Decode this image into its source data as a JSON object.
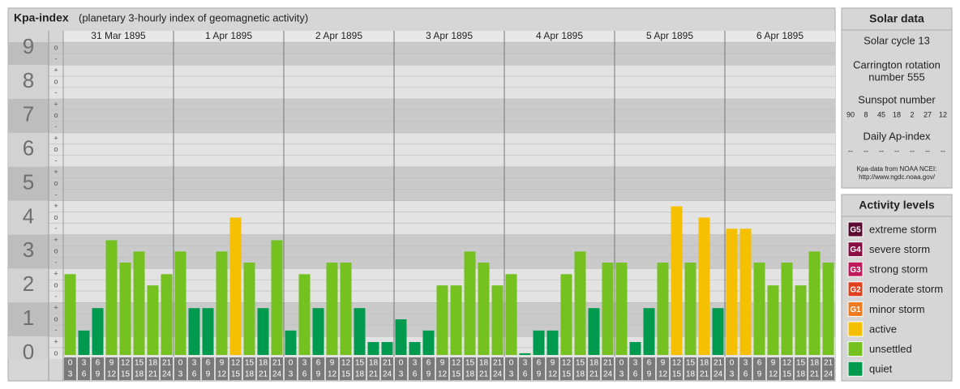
{
  "chart_data": {
    "type": "bar",
    "title": "Kpa-index",
    "subtitle": "(planetary 3-hourly index of geomagnetic activity)",
    "days": [
      "31 Mar 1895",
      "1 Apr 1895",
      "2 Apr 1895",
      "3 Apr 1895",
      "4 Apr 1895",
      "5 Apr 1895",
      "6 Apr 1895"
    ],
    "time_slots": [
      {
        "start": "0",
        "end": "3"
      },
      {
        "start": "3",
        "end": "6"
      },
      {
        "start": "6",
        "end": "9"
      },
      {
        "start": "9",
        "end": "12"
      },
      {
        "start": "12",
        "end": "15"
      },
      {
        "start": "15",
        "end": "18"
      },
      {
        "start": "18",
        "end": "21"
      },
      {
        "start": "21",
        "end": "24"
      }
    ],
    "values": [
      [
        2.33,
        0.67,
        1.33,
        3.33,
        2.67,
        3,
        2,
        2.33
      ],
      [
        3,
        1.33,
        1.33,
        3,
        4,
        2.67,
        1.33,
        3.33
      ],
      [
        0.67,
        2.33,
        1.33,
        2.67,
        2.67,
        1.33,
        0.33,
        0.33
      ],
      [
        1,
        0.33,
        0.67,
        2,
        2,
        3,
        2.67,
        2
      ],
      [
        2.33,
        0,
        0.67,
        0.67,
        2.33,
        3,
        1.33,
        2.67
      ],
      [
        2.67,
        0.33,
        1.33,
        2.67,
        4.33,
        2.67,
        4,
        1.33
      ],
      [
        3.67,
        3.67,
        2.67,
        2,
        2.67,
        2,
        3,
        2.67
      ]
    ],
    "colors": [
      [
        "#74c11f",
        "#009a4e",
        "#009a4e",
        "#74c11f",
        "#74c11f",
        "#74c11f",
        "#74c11f",
        "#74c11f"
      ],
      [
        "#74c11f",
        "#009a4e",
        "#009a4e",
        "#74c11f",
        "#f5c000",
        "#74c11f",
        "#009a4e",
        "#74c11f"
      ],
      [
        "#009a4e",
        "#74c11f",
        "#009a4e",
        "#74c11f",
        "#74c11f",
        "#009a4e",
        "#009a4e",
        "#009a4e"
      ],
      [
        "#009a4e",
        "#009a4e",
        "#009a4e",
        "#74c11f",
        "#74c11f",
        "#74c11f",
        "#74c11f",
        "#74c11f"
      ],
      [
        "#74c11f",
        "#009a4e",
        "#009a4e",
        "#009a4e",
        "#74c11f",
        "#74c11f",
        "#009a4e",
        "#74c11f"
      ],
      [
        "#74c11f",
        "#009a4e",
        "#009a4e",
        "#74c11f",
        "#f5c000",
        "#74c11f",
        "#f5c000",
        "#009a4e"
      ],
      [
        "#f5c000",
        "#f5c000",
        "#74c11f",
        "#74c11f",
        "#74c11f",
        "#74c11f",
        "#74c11f",
        "#74c11f"
      ]
    ],
    "ylim": [
      -0.17,
      9.17
    ],
    "ymajor": [
      0,
      1,
      2,
      3,
      4,
      5,
      6,
      7,
      8,
      9
    ],
    "yticks": [
      {
        "value": 0,
        "label": "o"
      },
      {
        "value": 0.33,
        "label": "+"
      },
      {
        "value": 0.67,
        "label": "-"
      },
      {
        "value": 1,
        "label": "o"
      },
      {
        "value": 1.33,
        "label": "+"
      },
      {
        "value": 1.67,
        "label": "-"
      },
      {
        "value": 2,
        "label": "o"
      },
      {
        "value": 2.33,
        "label": "+"
      },
      {
        "value": 2.67,
        "label": "-"
      },
      {
        "value": 3,
        "label": "o"
      },
      {
        "value": 3.33,
        "label": "+"
      },
      {
        "value": 3.67,
        "label": "-"
      },
      {
        "value": 4,
        "label": "o"
      },
      {
        "value": 4.33,
        "label": "+"
      },
      {
        "value": 4.67,
        "label": "-"
      },
      {
        "value": 5,
        "label": "o"
      },
      {
        "value": 5.33,
        "label": "+"
      },
      {
        "value": 5.67,
        "label": "-"
      },
      {
        "value": 6,
        "label": "o"
      },
      {
        "value": 6.33,
        "label": "+"
      },
      {
        "value": 6.67,
        "label": "-"
      },
      {
        "value": 7,
        "label": "o"
      },
      {
        "value": 7.33,
        "label": "+"
      },
      {
        "value": 7.67,
        "label": "-"
      },
      {
        "value": 8,
        "label": "o"
      },
      {
        "value": 8.33,
        "label": "+"
      },
      {
        "value": 8.67,
        "label": "-"
      },
      {
        "value": 9,
        "label": "o"
      }
    ],
    "grid": true,
    "band_colors": [
      "#e3e3e3",
      "#cacaca"
    ],
    "solar": {
      "title": "Solar data",
      "cycle": "Solar cycle 13",
      "carrington": [
        "Carrington rotation",
        "number 555"
      ],
      "sunspot_title": "Sunspot number",
      "sunspot": [
        90,
        8,
        45,
        18,
        2,
        27,
        12
      ],
      "ap_title": "Daily Ap-index",
      "ap": [
        "--",
        "--",
        "--",
        "--",
        "--",
        "--",
        "--"
      ],
      "source": [
        "Kpa-data from NOAA NCEI:",
        "http://www.ngdc.noaa.gov/"
      ]
    },
    "legend": {
      "title": "Activity levels",
      "items": [
        {
          "badge": "G5",
          "name": "extreme storm",
          "color": "#5c0a33"
        },
        {
          "badge": "G4",
          "name": "severe storm",
          "color": "#8a0e45"
        },
        {
          "badge": "G3",
          "name": "strong storm",
          "color": "#c01a5a"
        },
        {
          "badge": "G2",
          "name": "moderate storm",
          "color": "#e0401e"
        },
        {
          "badge": "G1",
          "name": "minor storm",
          "color": "#f07a1e"
        },
        {
          "name": "active",
          "color": "#f5c000"
        },
        {
          "name": "unsettled",
          "color": "#74c11f"
        },
        {
          "name": "quiet",
          "color": "#009a4e"
        }
      ]
    }
  }
}
